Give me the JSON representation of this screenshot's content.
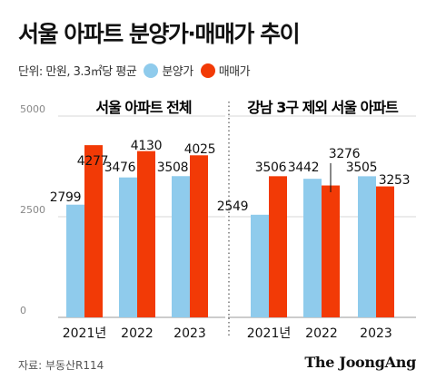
{
  "title": "서울 아파트 분양가·매매가 추이",
  "legend": {
    "unit_text": "단위: 만원, 3.3㎡당 평균",
    "items": [
      {
        "label": "분양가",
        "color": "#8fcbec"
      },
      {
        "label": "매매가",
        "color": "#f23a06"
      }
    ]
  },
  "source": "자료: 부동산R114",
  "brand": "The JoongAng",
  "chart_data": [
    {
      "type": "bar",
      "title": "서울 아파트 전체",
      "categories": [
        "2021년",
        "2022",
        "2023"
      ],
      "ylim": [
        0,
        5000
      ],
      "yticks": [
        "5000",
        "2500",
        "0"
      ],
      "grid": true,
      "series": [
        {
          "name": "분양가",
          "color": "#8fcbec",
          "values": [
            2799,
            3476,
            3508
          ]
        },
        {
          "name": "매매가",
          "color": "#f23a06",
          "values": [
            4277,
            4130,
            4025
          ]
        }
      ]
    },
    {
      "type": "bar",
      "title": "강남 3구 제외 서울 아파트",
      "categories": [
        "2021년",
        "2022",
        "2023"
      ],
      "ylim": [
        0,
        5000
      ],
      "grid": true,
      "series": [
        {
          "name": "분양가",
          "color": "#8fcbec",
          "values": [
            2549,
            3442,
            3505
          ]
        },
        {
          "name": "매매가",
          "color": "#f23a06",
          "values": [
            3506,
            3276,
            3253
          ]
        }
      ]
    }
  ]
}
